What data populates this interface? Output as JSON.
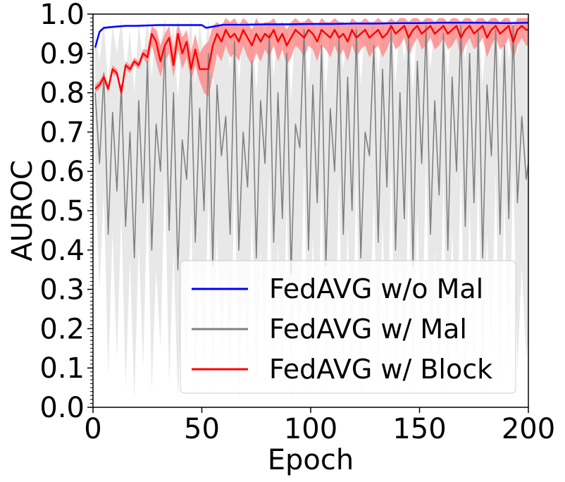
{
  "chart_data": {
    "type": "line",
    "title": "",
    "xlabel": "Epoch",
    "ylabel": "AUROC",
    "xlim": [
      0,
      200
    ],
    "ylim": [
      0.0,
      1.0
    ],
    "xticks": [
      "0",
      "50",
      "100",
      "150",
      "200"
    ],
    "yticks": [
      "0.0",
      "0.1",
      "0.2",
      "0.3",
      "0.4",
      "0.5",
      "0.6",
      "0.7",
      "0.8",
      "0.9",
      "1.0"
    ],
    "legend_position": "bottom-right",
    "series": [
      {
        "name": "FedAVG w/o Mal",
        "color": "#0000ff",
        "band_color": "#aaaaff",
        "x": [
          1,
          3,
          5,
          10,
          15,
          20,
          30,
          40,
          50,
          52,
          60,
          70,
          80,
          90,
          100,
          110,
          120,
          130,
          140,
          150,
          160,
          170,
          180,
          190,
          200
        ],
        "values": [
          0.915,
          0.955,
          0.965,
          0.968,
          0.97,
          0.97,
          0.972,
          0.972,
          0.972,
          0.965,
          0.973,
          0.973,
          0.974,
          0.974,
          0.975,
          0.975,
          0.976,
          0.976,
          0.977,
          0.977,
          0.978,
          0.978,
          0.978,
          0.977,
          0.978
        ],
        "lower": [
          0.905,
          0.95,
          0.962,
          0.965,
          0.967,
          0.967,
          0.969,
          0.969,
          0.969,
          0.962,
          0.97,
          0.97,
          0.971,
          0.971,
          0.972,
          0.972,
          0.973,
          0.973,
          0.974,
          0.974,
          0.975,
          0.975,
          0.975,
          0.974,
          0.975
        ],
        "upper": [
          0.925,
          0.96,
          0.968,
          0.971,
          0.973,
          0.973,
          0.975,
          0.975,
          0.975,
          0.968,
          0.976,
          0.976,
          0.977,
          0.977,
          0.978,
          0.978,
          0.979,
          0.979,
          0.98,
          0.98,
          0.981,
          0.981,
          0.981,
          0.98,
          0.981
        ]
      },
      {
        "name": "FedAVG w/ Mal",
        "color": "#808080",
        "band_color": "#e6e6e6",
        "x": [
          1,
          3,
          5,
          7,
          9,
          11,
          13,
          15,
          17,
          19,
          21,
          23,
          25,
          27,
          29,
          31,
          33,
          35,
          37,
          39,
          41,
          43,
          45,
          47,
          49,
          51,
          53,
          55,
          57,
          59,
          61,
          63,
          65,
          67,
          69,
          71,
          73,
          75,
          77,
          79,
          81,
          83,
          85,
          87,
          89,
          91,
          93,
          95,
          97,
          99,
          101,
          103,
          105,
          107,
          109,
          111,
          113,
          115,
          117,
          119,
          121,
          123,
          125,
          127,
          129,
          131,
          133,
          135,
          137,
          139,
          141,
          143,
          145,
          147,
          149,
          151,
          153,
          155,
          157,
          159,
          161,
          163,
          165,
          167,
          169,
          171,
          173,
          175,
          177,
          179,
          181,
          183,
          185,
          187,
          189,
          191,
          193,
          195,
          197,
          199,
          200
        ],
        "values": [
          0.8,
          0.62,
          0.85,
          0.44,
          0.75,
          0.55,
          0.82,
          0.46,
          0.7,
          0.38,
          0.78,
          0.52,
          0.88,
          0.4,
          0.72,
          0.6,
          0.92,
          0.45,
          0.8,
          0.35,
          0.68,
          0.58,
          0.86,
          0.42,
          0.76,
          0.5,
          0.9,
          0.36,
          0.82,
          0.64,
          0.74,
          0.44,
          0.93,
          0.4,
          0.7,
          0.56,
          0.88,
          0.38,
          0.78,
          0.62,
          0.95,
          0.42,
          0.8,
          0.48,
          0.9,
          0.34,
          0.72,
          0.66,
          0.96,
          0.4,
          0.82,
          0.52,
          0.92,
          0.36,
          0.76,
          0.6,
          0.94,
          0.44,
          0.84,
          0.5,
          0.96,
          0.38,
          0.7,
          0.64,
          0.92,
          0.42,
          0.86,
          0.56,
          0.97,
          0.4,
          0.8,
          0.48,
          0.94,
          0.36,
          0.88,
          0.62,
          0.97,
          0.44,
          0.78,
          0.54,
          0.95,
          0.4,
          0.84,
          0.6,
          0.97,
          0.46,
          0.9,
          0.52,
          0.96,
          0.38,
          0.82,
          0.64,
          0.96,
          0.44,
          0.92,
          0.48,
          0.97,
          0.52,
          0.74,
          0.58,
          0.62
        ],
        "lower": [
          0.6,
          0.3,
          0.55,
          0.08,
          0.45,
          0.12,
          0.5,
          0.05,
          0.38,
          0.02,
          0.42,
          0.1,
          0.55,
          0.04,
          0.35,
          0.15,
          0.6,
          0.06,
          0.4,
          0.02,
          0.3,
          0.1,
          0.5,
          0.04,
          0.38,
          0.08,
          0.55,
          0.03,
          0.45,
          0.12,
          0.36,
          0.05,
          0.58,
          0.02,
          0.32,
          0.1,
          0.5,
          0.04,
          0.4,
          0.14,
          0.6,
          0.06,
          0.42,
          0.08,
          0.52,
          0.02,
          0.34,
          0.16,
          0.62,
          0.04,
          0.44,
          0.1,
          0.56,
          0.03,
          0.38,
          0.12,
          0.58,
          0.06,
          0.46,
          0.08,
          0.6,
          0.02,
          0.34,
          0.14,
          0.55,
          0.05,
          0.48,
          0.1,
          0.62,
          0.04,
          0.4,
          0.08,
          0.58,
          0.02,
          0.5,
          0.12,
          0.64,
          0.06,
          0.4,
          0.1,
          0.58,
          0.04,
          0.46,
          0.12,
          0.62,
          0.06,
          0.52,
          0.08,
          0.6,
          0.02,
          0.44,
          0.14,
          0.6,
          0.06,
          0.54,
          0.08,
          0.62,
          0.1,
          0.36,
          0.12,
          0.18
        ],
        "upper": [
          0.95,
          0.88,
          0.98,
          0.82,
          0.97,
          0.9,
          0.99,
          0.85,
          0.96,
          0.8,
          0.98,
          0.88,
          0.99,
          0.84,
          0.97,
          0.92,
          0.99,
          0.86,
          0.98,
          0.78,
          0.96,
          0.9,
          0.99,
          0.82,
          0.98,
          0.88,
          0.99,
          0.8,
          0.98,
          0.94,
          0.97,
          0.86,
          0.99,
          0.82,
          0.96,
          0.9,
          0.99,
          0.8,
          0.98,
          0.94,
          0.99,
          0.84,
          0.98,
          0.88,
          0.99,
          0.78,
          0.97,
          0.94,
          0.99,
          0.82,
          0.98,
          0.9,
          0.99,
          0.8,
          0.98,
          0.92,
          0.99,
          0.86,
          0.99,
          0.9,
          0.99,
          0.82,
          0.97,
          0.94,
          0.99,
          0.84,
          0.99,
          0.92,
          0.99,
          0.82,
          0.98,
          0.88,
          0.99,
          0.8,
          0.99,
          0.94,
          0.99,
          0.86,
          0.98,
          0.92,
          0.99,
          0.84,
          0.99,
          0.94,
          0.99,
          0.88,
          0.99,
          0.9,
          0.99,
          0.82,
          0.99,
          0.94,
          0.99,
          0.86,
          0.99,
          0.88,
          0.99,
          0.9,
          0.97,
          0.92,
          0.94
        ]
      },
      {
        "name": "FedAVG w/ Block",
        "color": "#ff0000",
        "band_color": "#ff8080",
        "x": [
          1,
          3,
          5,
          7,
          9,
          11,
          13,
          15,
          17,
          19,
          21,
          23,
          25,
          27,
          29,
          31,
          33,
          35,
          37,
          39,
          41,
          43,
          45,
          47,
          49,
          51,
          53,
          55,
          57,
          59,
          61,
          63,
          65,
          67,
          69,
          71,
          73,
          75,
          77,
          79,
          81,
          83,
          85,
          87,
          89,
          91,
          93,
          95,
          97,
          99,
          101,
          103,
          105,
          107,
          109,
          111,
          113,
          115,
          117,
          119,
          121,
          123,
          125,
          127,
          129,
          131,
          133,
          135,
          137,
          139,
          141,
          143,
          145,
          147,
          149,
          151,
          153,
          155,
          157,
          159,
          161,
          163,
          165,
          167,
          169,
          171,
          173,
          175,
          177,
          179,
          181,
          183,
          185,
          187,
          189,
          191,
          193,
          195,
          197,
          199,
          200
        ],
        "values": [
          0.81,
          0.82,
          0.84,
          0.81,
          0.86,
          0.85,
          0.8,
          0.87,
          0.86,
          0.88,
          0.87,
          0.9,
          0.89,
          0.95,
          0.93,
          0.88,
          0.92,
          0.94,
          0.87,
          0.95,
          0.9,
          0.93,
          0.86,
          0.91,
          0.86,
          0.86,
          0.86,
          0.92,
          0.95,
          0.93,
          0.96,
          0.94,
          0.95,
          0.93,
          0.96,
          0.94,
          0.92,
          0.95,
          0.93,
          0.95,
          0.94,
          0.96,
          0.93,
          0.95,
          0.92,
          0.94,
          0.96,
          0.95,
          0.94,
          0.96,
          0.95,
          0.93,
          0.96,
          0.95,
          0.94,
          0.96,
          0.94,
          0.95,
          0.93,
          0.96,
          0.94,
          0.95,
          0.96,
          0.94,
          0.95,
          0.96,
          0.94,
          0.95,
          0.97,
          0.95,
          0.96,
          0.97,
          0.94,
          0.96,
          0.97,
          0.95,
          0.96,
          0.97,
          0.95,
          0.96,
          0.97,
          0.95,
          0.96,
          0.97,
          0.94,
          0.96,
          0.97,
          0.95,
          0.96,
          0.97,
          0.94,
          0.96,
          0.97,
          0.95,
          0.96,
          0.97,
          0.93,
          0.96,
          0.97,
          0.96,
          0.96
        ],
        "lower": [
          0.8,
          0.81,
          0.83,
          0.8,
          0.85,
          0.84,
          0.79,
          0.86,
          0.85,
          0.87,
          0.86,
          0.89,
          0.87,
          0.92,
          0.88,
          0.84,
          0.88,
          0.9,
          0.84,
          0.91,
          0.86,
          0.89,
          0.83,
          0.87,
          0.83,
          0.8,
          0.79,
          0.84,
          0.9,
          0.88,
          0.92,
          0.89,
          0.9,
          0.88,
          0.92,
          0.89,
          0.87,
          0.9,
          0.88,
          0.91,
          0.89,
          0.92,
          0.88,
          0.91,
          0.87,
          0.89,
          0.92,
          0.91,
          0.89,
          0.92,
          0.91,
          0.88,
          0.92,
          0.91,
          0.89,
          0.92,
          0.89,
          0.91,
          0.88,
          0.92,
          0.89,
          0.91,
          0.92,
          0.89,
          0.91,
          0.92,
          0.89,
          0.91,
          0.94,
          0.91,
          0.92,
          0.94,
          0.89,
          0.92,
          0.94,
          0.91,
          0.92,
          0.94,
          0.91,
          0.92,
          0.94,
          0.91,
          0.92,
          0.94,
          0.89,
          0.92,
          0.94,
          0.91,
          0.92,
          0.94,
          0.89,
          0.92,
          0.94,
          0.91,
          0.92,
          0.94,
          0.88,
          0.92,
          0.94,
          0.92,
          0.92
        ],
        "upper": [
          0.82,
          0.83,
          0.85,
          0.82,
          0.87,
          0.86,
          0.81,
          0.88,
          0.87,
          0.89,
          0.88,
          0.91,
          0.91,
          0.97,
          0.96,
          0.92,
          0.95,
          0.97,
          0.91,
          0.98,
          0.94,
          0.96,
          0.9,
          0.95,
          0.9,
          0.92,
          0.93,
          0.97,
          0.98,
          0.97,
          0.99,
          0.98,
          0.99,
          0.97,
          0.99,
          0.98,
          0.96,
          0.99,
          0.97,
          0.98,
          0.98,
          0.99,
          0.97,
          0.98,
          0.96,
          0.98,
          0.99,
          0.98,
          0.98,
          0.99,
          0.98,
          0.97,
          0.99,
          0.98,
          0.98,
          0.99,
          0.98,
          0.98,
          0.97,
          0.99,
          0.98,
          0.98,
          0.99,
          0.98,
          0.98,
          0.99,
          0.98,
          0.98,
          0.99,
          0.98,
          0.99,
          0.99,
          0.98,
          0.99,
          0.99,
          0.98,
          0.99,
          0.99,
          0.98,
          0.99,
          0.99,
          0.98,
          0.99,
          0.99,
          0.98,
          0.99,
          0.99,
          0.98,
          0.99,
          0.99,
          0.98,
          0.99,
          0.99,
          0.98,
          0.99,
          0.99,
          0.97,
          0.99,
          0.99,
          0.99,
          0.99
        ]
      }
    ]
  }
}
